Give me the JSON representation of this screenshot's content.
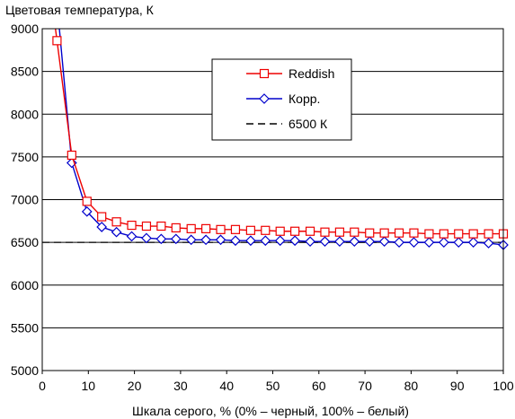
{
  "chart_data": {
    "type": "line",
    "ylabel": "Цветовая температура, К",
    "xlabel": "Шкала серого, % (0% – черный, 100% – белый)",
    "xlim": [
      0,
      100
    ],
    "ylim": [
      5000,
      9000
    ],
    "x_ticks": [
      0,
      10,
      20,
      30,
      40,
      50,
      60,
      70,
      80,
      90,
      100
    ],
    "y_ticks": [
      5000,
      5500,
      6000,
      6500,
      7000,
      7500,
      8000,
      8500,
      9000
    ],
    "grid": "horizontal",
    "legend_position": "upper-center-right",
    "series": [
      {
        "name": "Reddish",
        "color": "#ee0000",
        "marker": "square",
        "x": [
          3.2,
          6.4,
          9.7,
          12.9,
          16.1,
          19.4,
          22.6,
          25.8,
          29.0,
          32.3,
          35.5,
          38.7,
          41.9,
          45.2,
          48.4,
          51.6,
          54.8,
          58.1,
          61.3,
          64.5,
          67.7,
          71.0,
          74.2,
          77.4,
          80.6,
          83.9,
          87.1,
          90.3,
          93.5,
          96.8,
          100
        ],
        "y": [
          8860,
          7520,
          6980,
          6800,
          6740,
          6700,
          6690,
          6690,
          6670,
          6660,
          6660,
          6650,
          6650,
          6640,
          6640,
          6630,
          6630,
          6630,
          6620,
          6620,
          6620,
          6610,
          6610,
          6610,
          6610,
          6600,
          6600,
          6600,
          6600,
          6600,
          6600
        ]
      },
      {
        "name": "Корр.",
        "color": "#0000cc",
        "marker": "diamond",
        "x": [
          3.2,
          6.4,
          9.7,
          12.9,
          16.1,
          19.4,
          22.6,
          25.8,
          29.0,
          32.3,
          35.5,
          38.7,
          41.9,
          45.2,
          48.4,
          51.6,
          54.8,
          58.1,
          61.3,
          64.5,
          67.7,
          71.0,
          74.2,
          77.4,
          80.6,
          83.9,
          87.1,
          90.3,
          93.5,
          96.8,
          100
        ],
        "y": [
          9300,
          7430,
          6860,
          6680,
          6620,
          6570,
          6550,
          6540,
          6540,
          6530,
          6530,
          6530,
          6520,
          6520,
          6520,
          6520,
          6520,
          6510,
          6510,
          6510,
          6510,
          6510,
          6510,
          6500,
          6500,
          6500,
          6500,
          6500,
          6500,
          6490,
          6470
        ]
      },
      {
        "name": "6500 К",
        "color": "#000000",
        "style": "dashed",
        "x": [
          0,
          100
        ],
        "y": [
          6500,
          6500
        ]
      }
    ]
  }
}
